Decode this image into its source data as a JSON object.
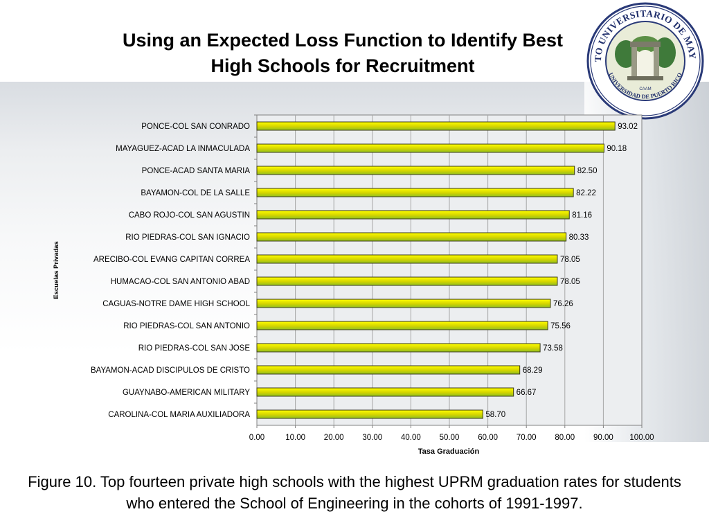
{
  "slide": {
    "title_line1": "Using an Expected Loss Function to Identify Best",
    "title_line2": "High Schools for Recruitment",
    "caption": "Figure 10. Top fourteen private high schools with the highest UPRM graduation rates for students who entered the School of Engineering in the cohorts of 1991-1997."
  },
  "seal": {
    "icon": "university-seal-icon",
    "text_top": "RECINTO UNIVERSITARIO DE MAYAGUEZ",
    "text_bottom": "UNIVERSIDAD DE PUERTO RICO",
    "inner_text": "CAAM"
  },
  "colors": {
    "bar_light": "#ffff00",
    "bar_mid": "#d4d400",
    "bar_dark": "#8fbf20",
    "plot_bg": "#eceef0",
    "grid": "#a6a6a6"
  },
  "chart_data": {
    "type": "bar",
    "orientation": "horizontal",
    "categories": [
      "PONCE-COL SAN CONRADO",
      "MAYAGUEZ-ACAD LA INMACULADA",
      "PONCE-ACAD SANTA MARIA",
      "BAYAMON-COL DE LA SALLE",
      "CABO ROJO-COL SAN AGUSTIN",
      "RIO PIEDRAS-COL SAN IGNACIO",
      "ARECIBO-COL EVANG CAPITAN CORREA",
      "HUMACAO-COL SAN ANTONIO ABAD",
      "CAGUAS-NOTRE DAME HIGH SCHOOL",
      "RIO PIEDRAS-COL SAN ANTONIO",
      "RIO PIEDRAS-COL SAN JOSE",
      "BAYAMON-ACAD DISCIPULOS DE CRISTO",
      "GUAYNABO-AMERICAN MILITARY",
      "CAROLINA-COL MARIA AUXILIADORA"
    ],
    "values": [
      93.02,
      90.18,
      82.5,
      82.22,
      81.16,
      80.33,
      78.05,
      78.05,
      76.26,
      75.56,
      73.58,
      68.29,
      66.67,
      58.7
    ],
    "data_labels": [
      "93.02",
      "90.18",
      "82.50",
      "82.22",
      "81.16",
      "80.33",
      "78.05",
      "78.05",
      "76.26",
      "75.56",
      "73.58",
      "68.29",
      "66.67",
      "58.70"
    ],
    "x_ticks": [
      "0.00",
      "10.00",
      "20.00",
      "30.00",
      "40.00",
      "50.00",
      "60.00",
      "70.00",
      "80.00",
      "90.00",
      "100.00"
    ],
    "xlim": [
      0,
      100
    ],
    "xlabel": "Tasa Graduación",
    "ylabel": "Escuelas Privadas",
    "grid": "vertical",
    "legend": "none"
  }
}
